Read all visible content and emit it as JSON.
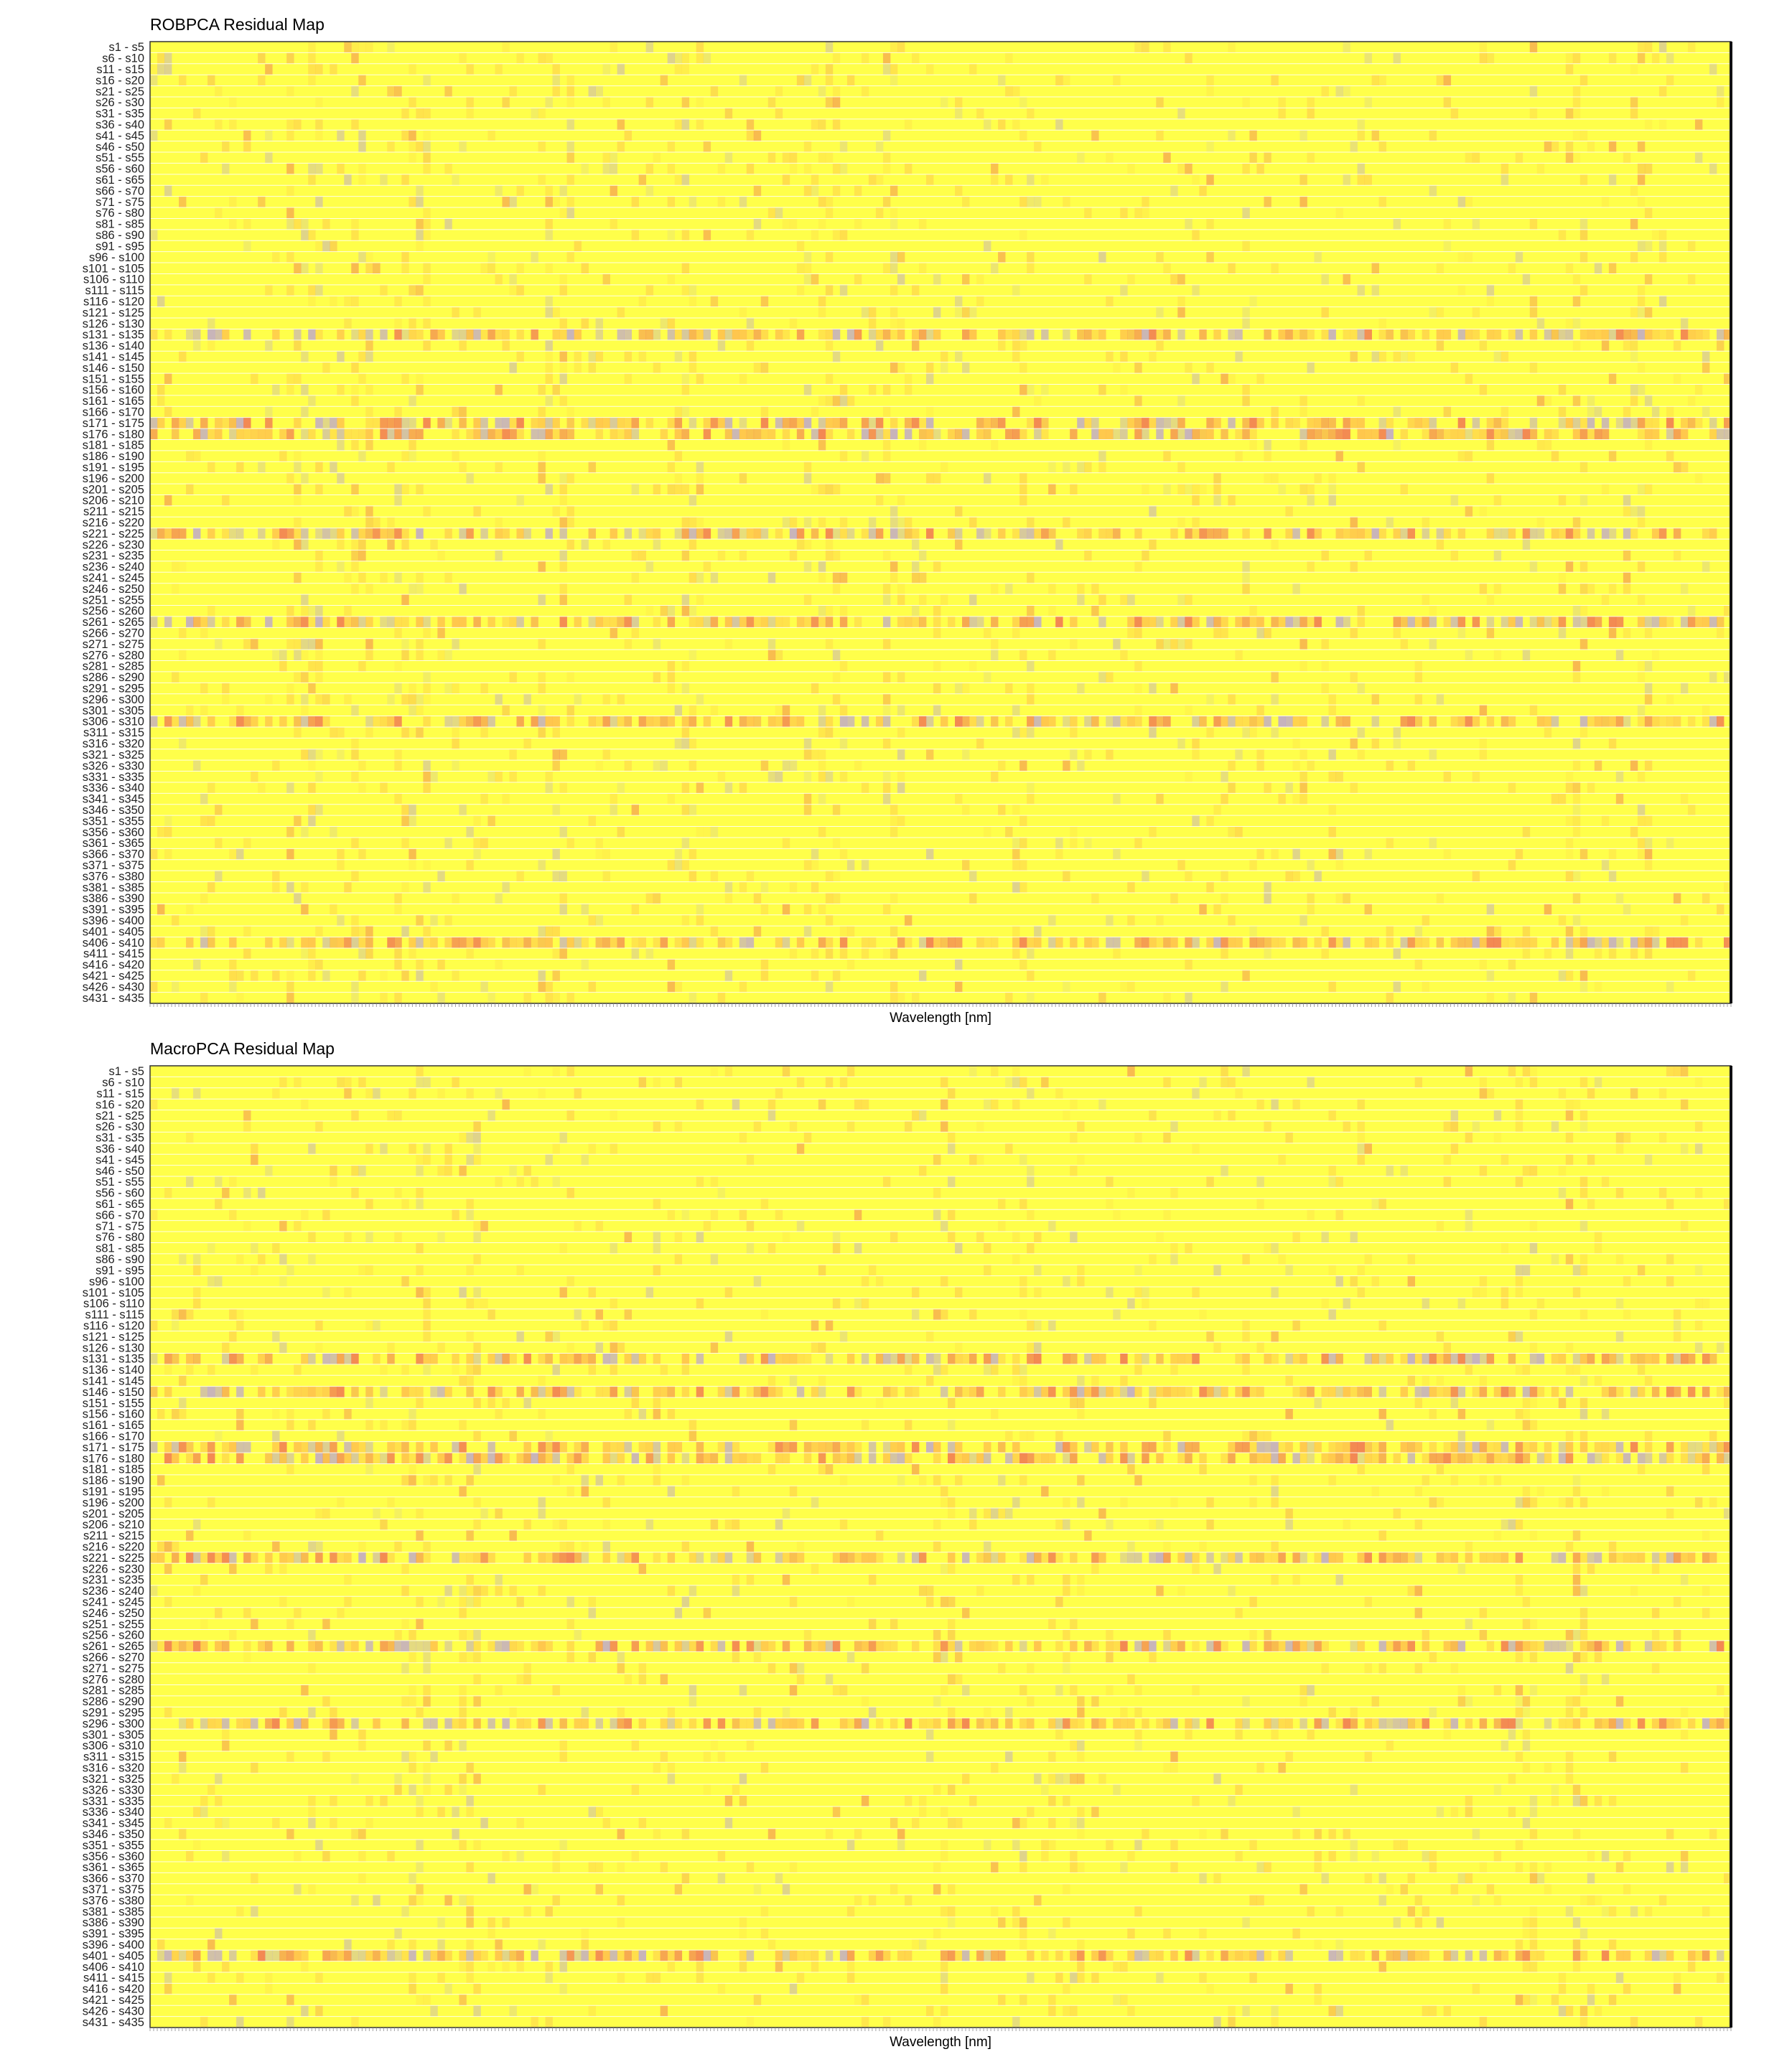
{
  "chart_data": [
    {
      "type": "heatmap",
      "title": "ROBPCA Residual Map",
      "xlabel": "Wavelength [nm]",
      "ylabel": "",
      "row_labels": [
        "s1 - s5",
        "s6 - s10",
        "s11 - s15",
        "s16 - s20",
        "s21 - s25",
        "s26 - s30",
        "s31 - s35",
        "s36 - s40",
        "s41 - s45",
        "s46 - s50",
        "s51 - s55",
        "s56 - s60",
        "s61 - s65",
        "s66 - s70",
        "s71 - s75",
        "s76 - s80",
        "s81 - s85",
        "s86 - s90",
        "s91 - s95",
        "s96 - s100",
        "s101 - s105",
        "s106 - s110",
        "s111 - s115",
        "s116 - s120",
        "s121 - s125",
        "s126 - s130",
        "s131 - s135",
        "s136 - s140",
        "s141 - s145",
        "s146 - s150",
        "s151 - s155",
        "s156 - s160",
        "s161 - s165",
        "s166 - s170",
        "s171 - s175",
        "s176 - s180",
        "s181 - s185",
        "s186 - s190",
        "s191 - s195",
        "s196 - s200",
        "s201 - s205",
        "s206 - s210",
        "s211 - s215",
        "s216 - s220",
        "s221 - s225",
        "s226 - s230",
        "s231 - s235",
        "s236 - s240",
        "s241 - s245",
        "s246 - s250",
        "s251 - s255",
        "s256 - s260",
        "s261 - s265",
        "s266 - s270",
        "s271 - s275",
        "s276 - s280",
        "s281 - s285",
        "s286 - s290",
        "s291 - s295",
        "s296 - s300",
        "s301 - s305",
        "s306 - s310",
        "s311 - s315",
        "s316 - s320",
        "s321 - s325",
        "s326 - s330",
        "s331 - s335",
        "s336 - s340",
        "s341 - s345",
        "s346 - s350",
        "s351 - s355",
        "s356 - s360",
        "s361 - s365",
        "s366 - s370",
        "s371 - s375",
        "s376 - s380",
        "s381 - s385",
        "s386 - s390",
        "s391 - s395",
        "s396 - s400",
        "s401 - s405",
        "s406 - s410",
        "s411 - s415",
        "s416 - s420",
        "s421 - s425",
        "s426 - s430",
        "s431 - s435"
      ],
      "grid": true,
      "colors": {
        "base": "#ffff4a",
        "mid": "#ffb84d",
        "high": "#f06a55",
        "outlier": "#b9a0d8"
      },
      "band_rows": [
        "s221 - s225",
        "s171 - s175",
        "s176 - s180",
        "s131 - s135",
        "s261 - s265",
        "s306 - s310",
        "s406 - s410"
      ],
      "hot_column_fractions": [
        0.09,
        0.1,
        0.13,
        0.16,
        0.17,
        0.25,
        0.26,
        0.33,
        0.34,
        0.42,
        0.43,
        0.47,
        0.55,
        0.9,
        0.94
      ]
    },
    {
      "type": "heatmap",
      "title": "MacroPCA Residual Map",
      "xlabel": "Wavelength [nm]",
      "ylabel": "",
      "row_labels": [
        "s1 - s5",
        "s6 - s10",
        "s11 - s15",
        "s16 - s20",
        "s21 - s25",
        "s26 - s30",
        "s31 - s35",
        "s36 - s40",
        "s41 - s45",
        "s46 - s50",
        "s51 - s55",
        "s56 - s60",
        "s61 - s65",
        "s66 - s70",
        "s71 - s75",
        "s76 - s80",
        "s81 - s85",
        "s86 - s90",
        "s91 - s95",
        "s96 - s100",
        "s101 - s105",
        "s106 - s110",
        "s111 - s115",
        "s116 - s120",
        "s121 - s125",
        "s126 - s130",
        "s131 - s135",
        "s136 - s140",
        "s141 - s145",
        "s146 - s150",
        "s151 - s155",
        "s156 - s160",
        "s161 - s165",
        "s166 - s170",
        "s171 - s175",
        "s176 - s180",
        "s181 - s185",
        "s186 - s190",
        "s191 - s195",
        "s196 - s200",
        "s201 - s205",
        "s206 - s210",
        "s211 - s215",
        "s216 - s220",
        "s221 - s225",
        "s226 - s230",
        "s231 - s235",
        "s236 - s240",
        "s241 - s245",
        "s246 - s250",
        "s251 - s255",
        "s256 - s260",
        "s261 - s265",
        "s266 - s270",
        "s271 - s275",
        "s276 - s280",
        "s281 - s285",
        "s286 - s290",
        "s291 - s295",
        "s296 - s300",
        "s301 - s305",
        "s306 - s310",
        "s311 - s315",
        "s316 - s320",
        "s321 - s325",
        "s326 - s330",
        "s331 - s335",
        "s336 - s340",
        "s341 - s345",
        "s346 - s350",
        "s351 - s355",
        "s356 - s360",
        "s361 - s365",
        "s366 - s370",
        "s371 - s375",
        "s376 - s380",
        "s381 - s385",
        "s386 - s390",
        "s391 - s395",
        "s396 - s400",
        "s401 - s405",
        "s406 - s410",
        "s411 - s415",
        "s416 - s420",
        "s421 - s425",
        "s426 - s430",
        "s431 - s435"
      ],
      "grid": true,
      "colors": {
        "base": "#ffff4a",
        "mid": "#ffb84d",
        "high": "#f06a55",
        "outlier": "#b9a0d8"
      },
      "band_rows": [
        "s221 - s225",
        "s131 - s135",
        "s146 - s150",
        "s261 - s265",
        "s401 - s405",
        "s296 - s300",
        "s171 - s175",
        "s176 - s180"
      ],
      "hot_column_fractions": [
        0.17,
        0.2,
        0.5,
        0.55,
        0.58,
        0.87,
        0.9
      ]
    }
  ]
}
